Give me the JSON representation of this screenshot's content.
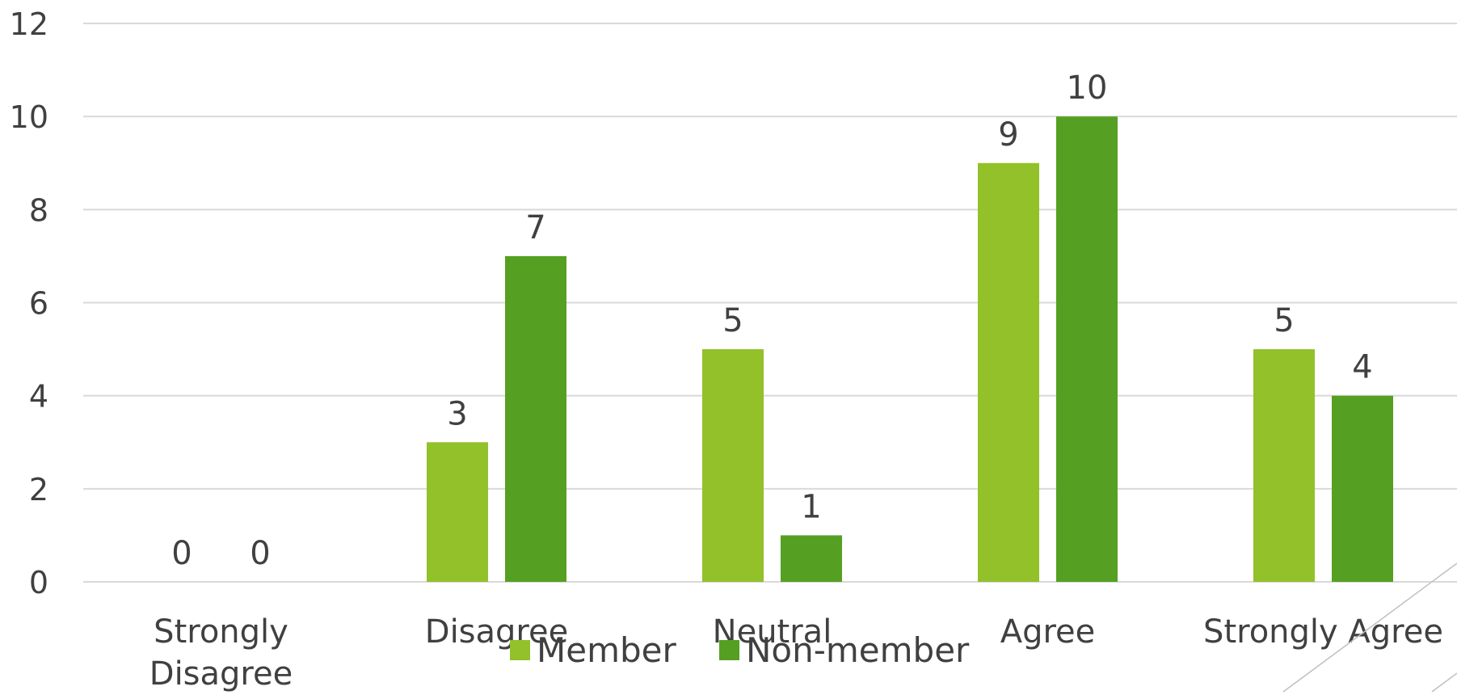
{
  "chart_data": {
    "type": "bar",
    "categories": [
      "Strongly Disagree",
      "Disagree",
      "Neutral",
      "Agree",
      "Strongly Agree"
    ],
    "category_lines": [
      [
        "Strongly",
        "Disagree"
      ],
      [
        "Disagree"
      ],
      [
        "Neutral"
      ],
      [
        "Agree"
      ],
      [
        "Strongly Agree"
      ]
    ],
    "series": [
      {
        "name": "Member",
        "values": [
          0,
          3,
          5,
          9,
          5
        ],
        "color": "#92c12a"
      },
      {
        "name": "Non-member",
        "values": [
          0,
          7,
          1,
          10,
          4
        ],
        "color": "#55a022"
      }
    ],
    "title": "",
    "xlabel": "",
    "ylabel": "",
    "ylim": [
      0,
      12
    ],
    "yticks": [
      0,
      2,
      4,
      6,
      8,
      10,
      12
    ],
    "grid": true,
    "data_labels": true,
    "legend_position": "bottom"
  }
}
